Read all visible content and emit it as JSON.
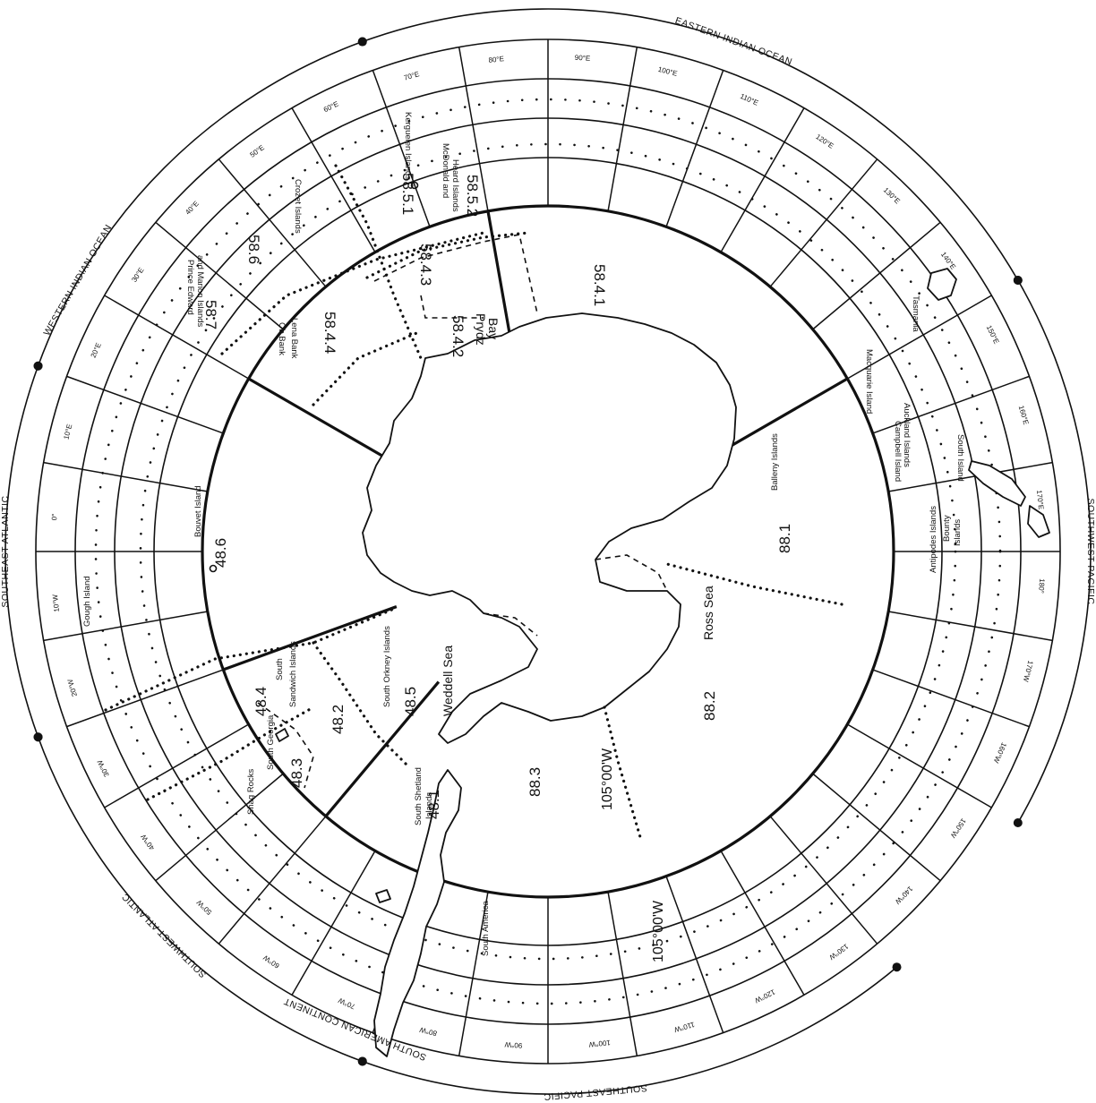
{
  "map": {
    "ocean_regions": [
      {
        "label": "SOUTHEAST ATLANTIC",
        "center_deg": 0
      },
      {
        "label": "WESTERN INDIAN OCEAN",
        "center_deg": 30
      },
      {
        "label": "EASTERN INDIAN OCEAN",
        "center_deg": 110
      },
      {
        "label": "SOUTHWEST PACIFIC",
        "center_deg": 180
      },
      {
        "label": "SOUTHEAST PACIFIC",
        "center_deg": -95
      },
      {
        "label": "SOUTHWEST ATLANTIC",
        "center_deg": -45
      },
      {
        "label": "SOUTH AMERICAN CONTINENT",
        "center_deg": -68
      }
    ],
    "area_labels": [
      "48.1",
      "48.2",
      "48.3",
      "48.4",
      "48.5",
      "48.6",
      "58.4.1",
      "58.4.2",
      "58.4.3",
      "58.4.4",
      "58.5.1",
      "58.5.2",
      "58.6",
      "58.7",
      "88.1",
      "88.2",
      "88.3"
    ],
    "place_labels": [
      "Bouvet Island",
      "Gough Island",
      "Prince Edward",
      "and Marion Islands",
      "Crozet Islands",
      "Kerguelen Islands",
      "McDonald and",
      "Heard Islands",
      "Ob Bank",
      "Lena Bank",
      "Prydz",
      "Bay",
      "Balleny Islands",
      "Macquarie Island",
      "Campbell Island",
      "Auckland Islands",
      "Antipodes Islands",
      "Bounty",
      "Islands",
      "South Island",
      "Tasmania",
      "Ross Sea",
      "Weddell Sea",
      "South",
      "Sandwich Islands",
      "South Orkney Islands",
      "South Georgia",
      "Shag Rocks",
      "South Shetland",
      "Islands",
      "South America"
    ],
    "meridian_labels": [
      "0°",
      "10°E",
      "20°E",
      "30°E",
      "40°E",
      "50°E",
      "60°E",
      "70°E",
      "80°E",
      "90°E",
      "100°E",
      "110°E",
      "120°E",
      "130°E",
      "140°E",
      "150°E",
      "160°E",
      "170°E",
      "180°",
      "170°W",
      "160°W",
      "150°W",
      "140°W",
      "130°W",
      "120°W",
      "110°W",
      "100°W",
      "90°W",
      "80°W",
      "70°W",
      "60°W",
      "50°W",
      "40°W",
      "30°W",
      "20°W",
      "10°W"
    ],
    "line_labels": [
      "105°00'W",
      "105°00'W"
    ],
    "colors": {
      "ink": "#111111",
      "paper": "#ffffff"
    }
  }
}
